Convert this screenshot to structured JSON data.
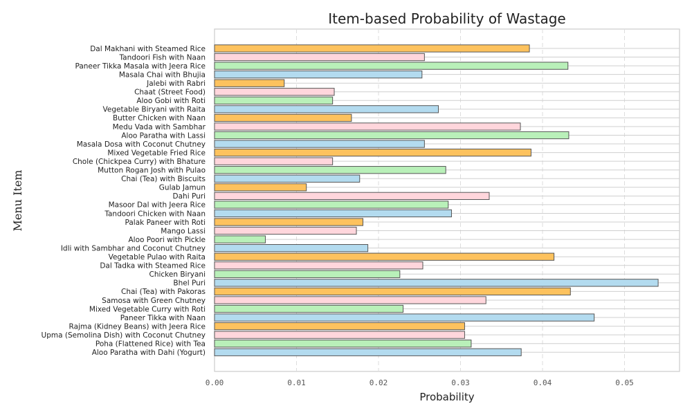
{
  "chart_data": {
    "type": "bar",
    "orientation": "horizontal",
    "title": "Item-based Probability of Wastage",
    "xlabel": "Probability",
    "ylabel": "Menu Item",
    "xlim": [
      0.0,
      0.057
    ],
    "xticks": [
      "0.00",
      "0.01",
      "0.02",
      "0.03",
      "0.04",
      "0.05"
    ],
    "grid": "vertical dashed",
    "bar_colors": [
      "#b3dbef",
      "#b9f0b9",
      "#ffd6dc",
      "#fdc25e"
    ],
    "categories": [
      "Dal Makhani with Steamed Rice",
      "Tandoori Fish with Naan",
      "Paneer Tikka Masala with Jeera Rice",
      "Masala Chai with Bhujia",
      "Jalebi with Rabri",
      "Chaat (Street Food)",
      "Aloo Gobi with Roti",
      "Vegetable Biryani with Raita",
      "Butter Chicken with Naan",
      "Medu Vada with Sambhar",
      "Aloo Paratha with Lassi",
      "Masala Dosa with Coconut Chutney",
      "Mixed Vegetable Fried Rice",
      "Chole (Chickpea Curry) with Bhature",
      "Mutton Rogan Josh with Pulao",
      "Chai (Tea) with Biscuits",
      "Gulab Jamun",
      "Dahi Puri",
      "Masoor Dal with Jeera Rice",
      "Tandoori Chicken with Naan",
      "Palak Paneer with Roti",
      "Mango Lassi",
      "Aloo Poori with Pickle",
      "Idli with Sambhar and Coconut Chutney",
      "Vegetable Pulao with Raita",
      "Dal Tadka with Steamed Rice",
      "Chicken Biryani",
      "Bhel Puri",
      "Chai (Tea) with Pakoras",
      "Samosa with Green Chutney",
      "Mixed Vegetable Curry with Roti",
      "Paneer Tikka with Naan",
      "Rajma (Kidney Beans) with Jeera Rice",
      "Upma (Semolina Dish) with Coconut Chutney",
      "Poha (Flattened Rice) with Tea",
      "Aloo Paratha with Dahi (Yogurt)"
    ],
    "values": [
      0.0384,
      0.0256,
      0.0431,
      0.0253,
      0.0085,
      0.0146,
      0.0144,
      0.0273,
      0.0167,
      0.0373,
      0.0432,
      0.0256,
      0.0386,
      0.0144,
      0.0282,
      0.0177,
      0.0112,
      0.0335,
      0.0285,
      0.0289,
      0.0181,
      0.0173,
      0.0062,
      0.0187,
      0.0414,
      0.0254,
      0.0226,
      0.0541,
      0.0434,
      0.0331,
      0.023,
      0.0463,
      0.0305,
      0.0305,
      0.0313,
      0.0374
    ]
  }
}
